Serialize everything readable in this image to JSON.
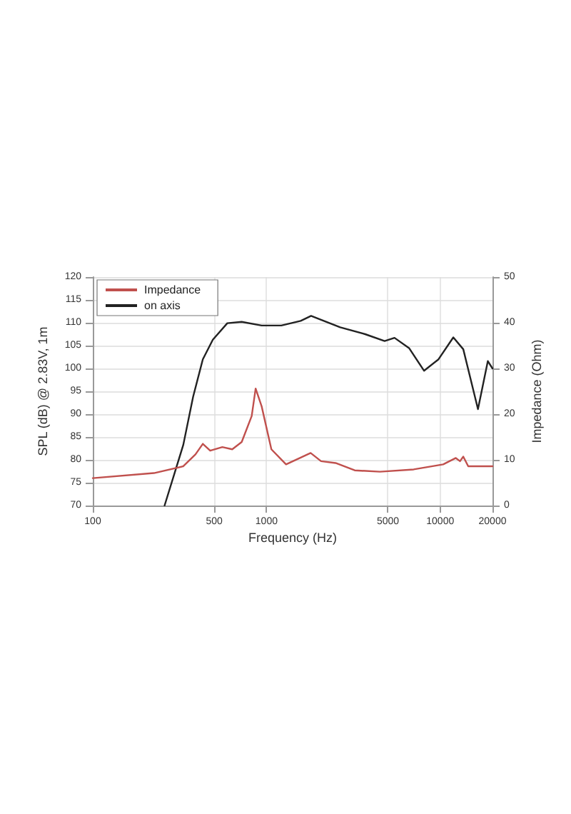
{
  "chart_data": {
    "type": "line",
    "xlabel": "Frequency (Hz)",
    "ylabel": "SPL (dB) @ 2.83V, 1m",
    "y2label": "Impedance (Ohm)",
    "log": "x",
    "grid": true,
    "legend": "top left",
    "marker": "none",
    "line_style": "solid",
    "xlim": [
      100,
      20000
    ],
    "xticks": [
      100,
      500,
      1000,
      5000,
      10000,
      20000
    ],
    "ylim": [
      70,
      120
    ],
    "yticks": [
      70,
      75,
      80,
      85,
      90,
      95,
      100,
      105,
      110,
      115,
      120
    ],
    "y2lim": [
      0,
      50
    ],
    "y2ticks": [
      0,
      10,
      20,
      30,
      40,
      50
    ],
    "series": [
      {
        "name": "Impedance",
        "color": "#c0504d",
        "axis": "y2",
        "x": [
          100,
          225,
          332,
          390,
          430,
          474,
          557,
          635,
          720,
          822,
          866,
          938,
          1067,
          1296,
          1795,
          2061,
          2500,
          3220,
          4498,
          7030,
          10400,
          12300,
          13000,
          13580,
          14500,
          20000
        ],
        "values": [
          6.0,
          7.1,
          8.6,
          11.2,
          13.5,
          12.0,
          12.8,
          12.3,
          13.9,
          19.6,
          25.6,
          21.7,
          12.3,
          9.0,
          11.5,
          9.7,
          9.3,
          7.7,
          7.4,
          7.9,
          9.0,
          10.4,
          9.7,
          10.7,
          8.6,
          8.6
        ]
      },
      {
        "name": "on axis",
        "color": "#222222",
        "x": [
          259,
          332,
          378,
          430,
          491,
          595,
          720,
          938,
          1217,
          1574,
          1806,
          2656,
          3698,
          4786,
          5458,
          6637,
          8070,
          9780,
          11900,
          13580,
          16500,
          18800,
          20000
        ],
        "values": [
          70,
          83.3,
          93.8,
          102,
          106.3,
          109.9,
          110.2,
          109.4,
          109.4,
          110.4,
          111.5,
          109,
          107.5,
          106,
          106.7,
          104.4,
          99.5,
          102,
          106.8,
          104.2,
          91.1,
          101.6,
          100
        ]
      }
    ]
  }
}
